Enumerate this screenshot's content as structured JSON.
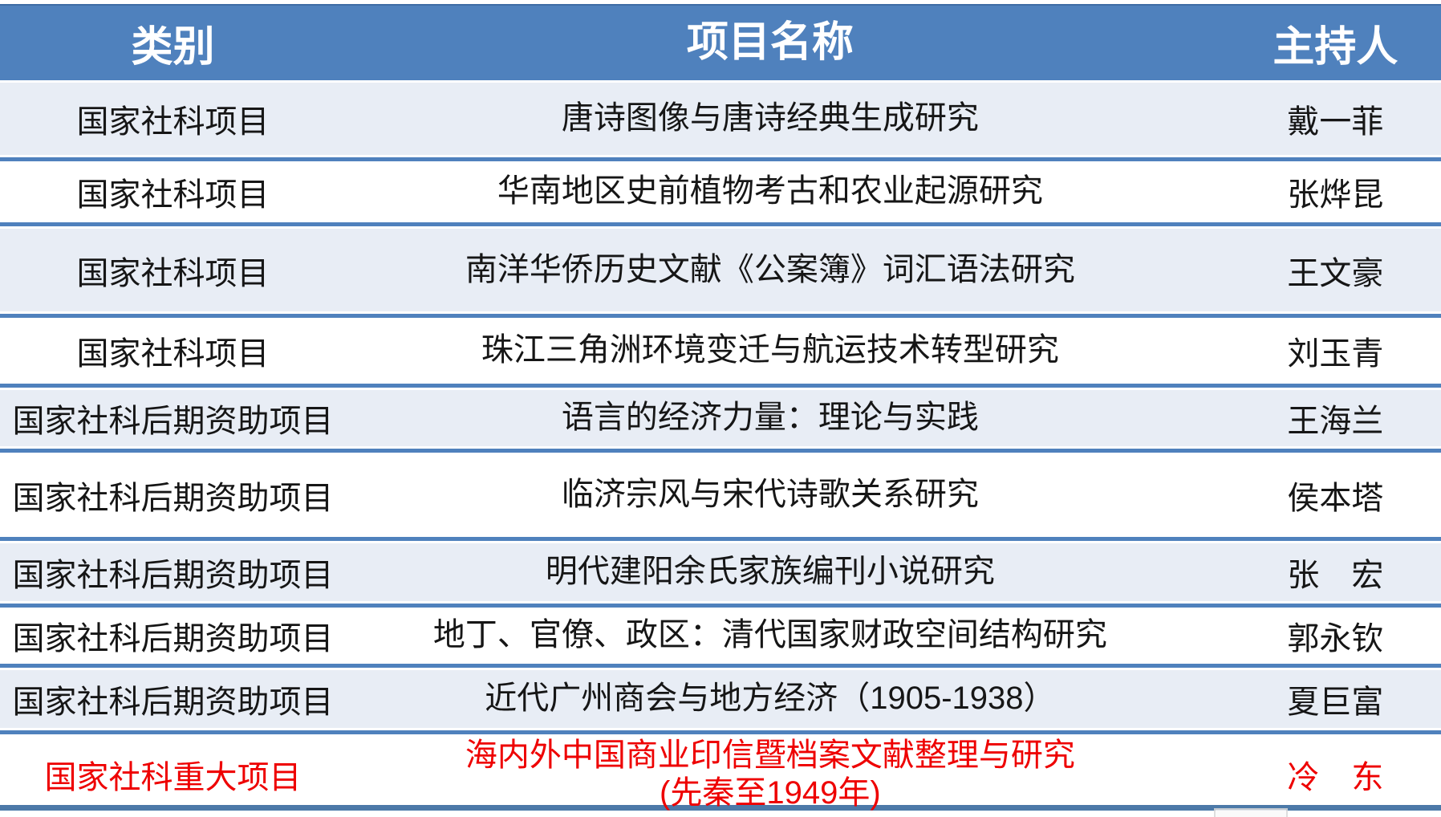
{
  "table": {
    "title_hint": "科研项目立项一览表",
    "colors": {
      "header_blue": "#4F81BD",
      "band_light": "#E8EDF5",
      "band_white": "#FFFFFF",
      "separator_blue": "#4F81BD",
      "highlight_red": "#EE0000",
      "header_text": "#FFFFFF",
      "body_text": "#161616"
    },
    "columns": {
      "category": "类别",
      "project": "项目名称",
      "lead": "主持人"
    },
    "rows": [
      {
        "category": "国家社科项目",
        "title": "唐诗图像与唐诗经典生成研究",
        "lead": "戴一菲"
      },
      {
        "category": "国家社科项目",
        "title": "华南地区史前植物考古和农业起源研究",
        "lead": "张烨昆"
      },
      {
        "category": "国家社科项目",
        "title": "南洋华侨历史文献《公案簿》词汇语法研究",
        "lead": "王文豪"
      },
      {
        "category": "国家社科项目",
        "title": "珠江三角洲环境变迁与航运技术转型研究",
        "lead": "刘玉青"
      },
      {
        "category": "国家社科后期资助项目",
        "title": "语言的经济力量：理论与实践",
        "lead": "王海兰"
      },
      {
        "category": "国家社科后期资助项目",
        "title": "临济宗风与宋代诗歌关系研究",
        "lead": "侯本塔"
      },
      {
        "category": "国家社科后期资助项目",
        "title": "明代建阳余氏家族编刊小说研究",
        "lead": "张　宏"
      },
      {
        "category": "国家社科后期资助项目",
        "title": "地丁、官僚、政区：清代国家财政空间结构研究",
        "lead": "郭永钦"
      },
      {
        "category": "国家社科后期资助项目",
        "title": "近代广州商会与地方经济（1905-1938）",
        "lead": "夏巨富"
      },
      {
        "category": "国家社科重大项目",
        "title": "海内外中国商业印信暨档案文献整理与研究\n(先秦至1949年)",
        "lead": "冷　东"
      }
    ]
  }
}
